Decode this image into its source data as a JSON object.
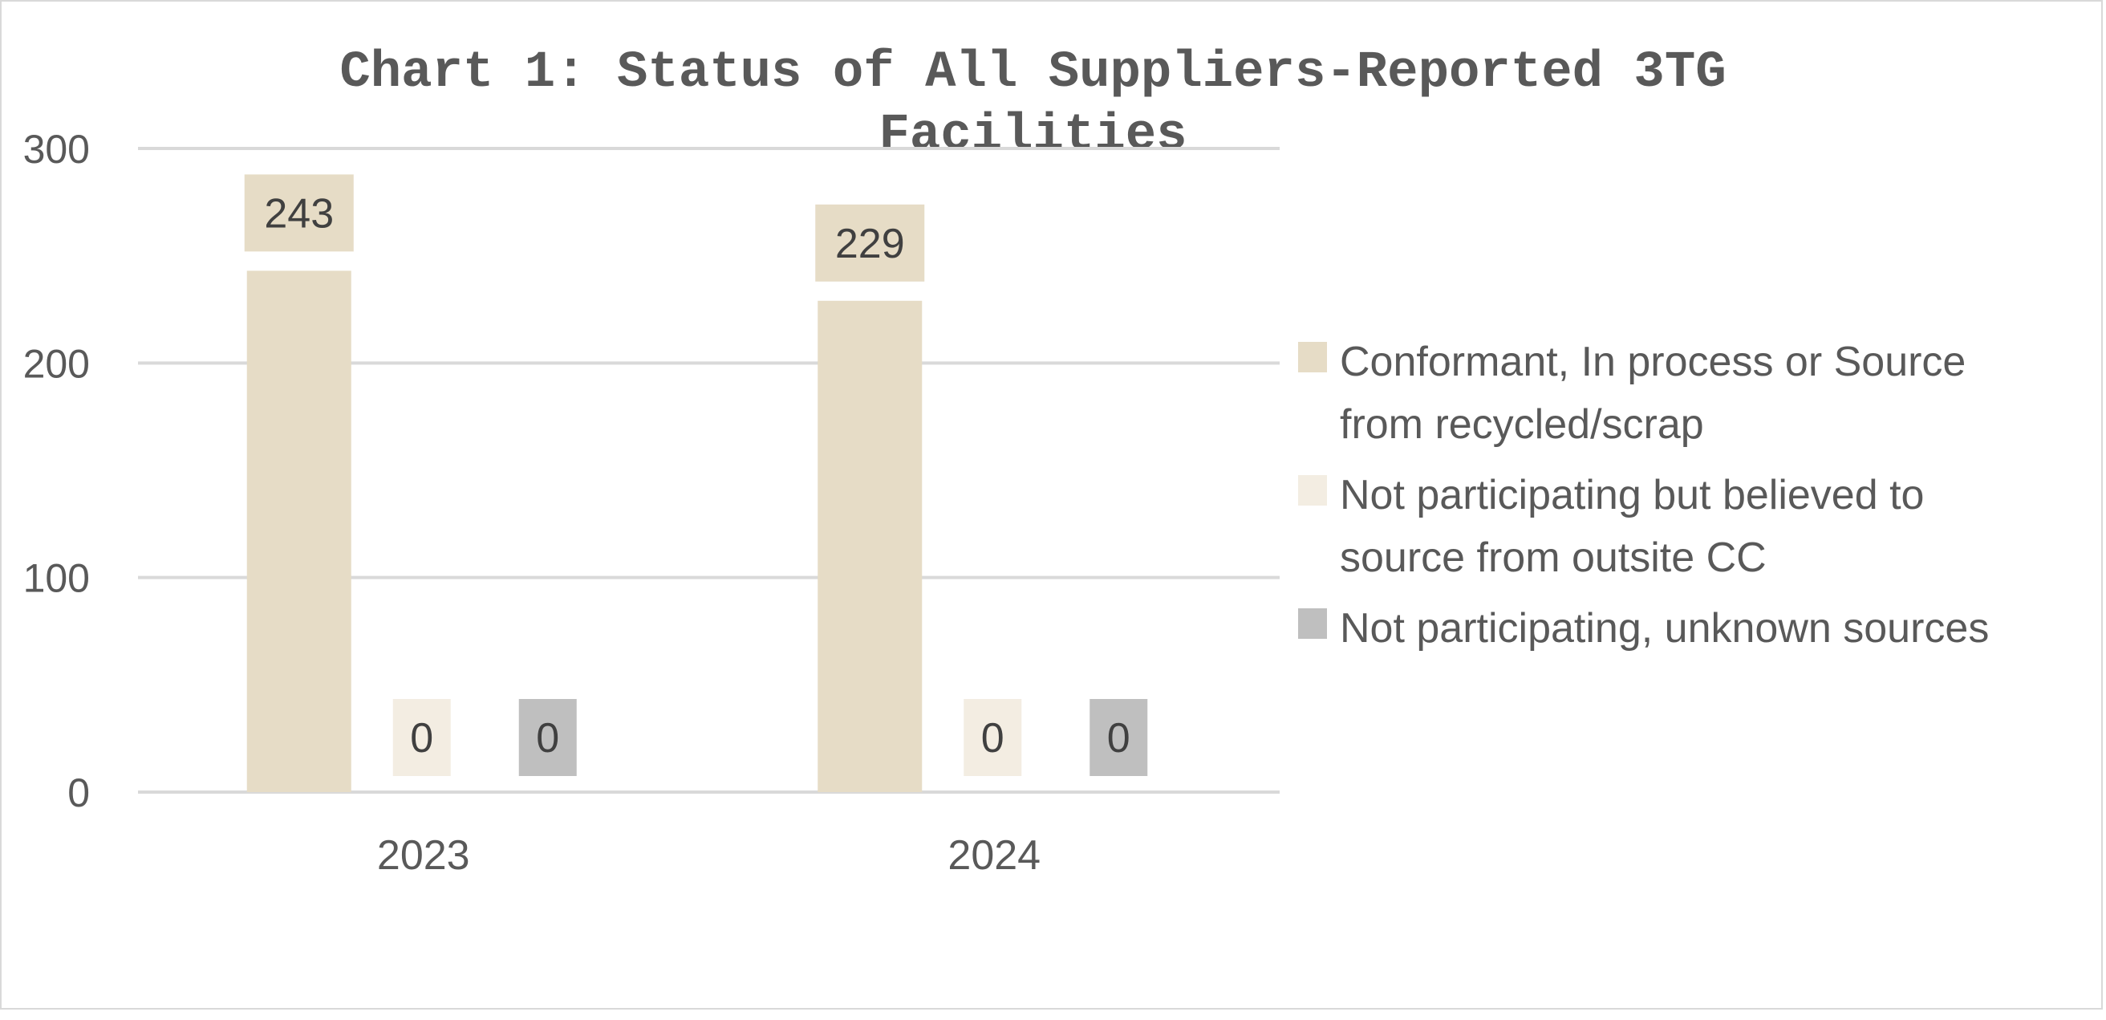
{
  "chart_data": {
    "type": "bar",
    "title": "Chart 1: Status of All Suppliers-Reported 3TG Facilities",
    "categories": [
      "2023",
      "2024"
    ],
    "series": [
      {
        "name": "Conformant, In process or Source from recycled/scrap",
        "values": [
          243,
          229
        ],
        "color": "#e6dcc6"
      },
      {
        "name": "Not participating but believed to source from outsite CC",
        "values": [
          0,
          0
        ],
        "color": "#f3ede2"
      },
      {
        "name": "Not participating, unknown sources",
        "values": [
          0,
          0
        ],
        "color": "#bfbfbf"
      }
    ],
    "ylim": [
      0,
      300
    ],
    "yticks": [
      0,
      100,
      200,
      300
    ],
    "gridlines": true,
    "gridline_color": "#d9d9d9",
    "data_labels": true,
    "legend_position": "right",
    "xlabel": "",
    "ylabel": ""
  }
}
